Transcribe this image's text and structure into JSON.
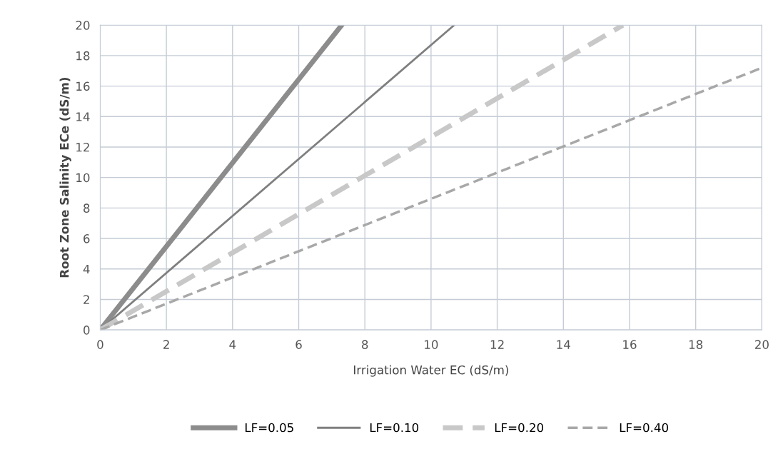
{
  "chart_data": {
    "type": "line",
    "xlabel": "Irrigation Water EC (dS/m)",
    "ylabel": "Root Zone Salinity ECe (dS/m)",
    "xlim": [
      0,
      20
    ],
    "ylim": [
      0,
      20
    ],
    "xticks": [
      0,
      2,
      4,
      6,
      8,
      10,
      12,
      14,
      16,
      18,
      20
    ],
    "yticks": [
      0,
      2,
      4,
      6,
      8,
      10,
      12,
      14,
      16,
      18,
      20
    ],
    "grid": true,
    "legend": "bottom",
    "marker": "none",
    "series": [
      {
        "name": "LF=0.05",
        "color": "#8c8c8c",
        "line_style": "solid",
        "x": [
          0,
          7.3
        ],
        "values": [
          0,
          20
        ]
      },
      {
        "name": "LF=0.10",
        "color": "#7f7f7f",
        "line_style": "solid",
        "x": [
          0,
          10.7
        ],
        "values": [
          0,
          20
        ]
      },
      {
        "name": "LF=0.20",
        "color": "#c8c8c8",
        "line_style": "dashed",
        "x": [
          0,
          15.8
        ],
        "values": [
          0,
          20
        ]
      },
      {
        "name": "LF=0.40",
        "color": "#a8a8a8",
        "line_style": "dashed",
        "x": [
          0,
          20
        ],
        "values": [
          0,
          17.2
        ]
      }
    ]
  }
}
